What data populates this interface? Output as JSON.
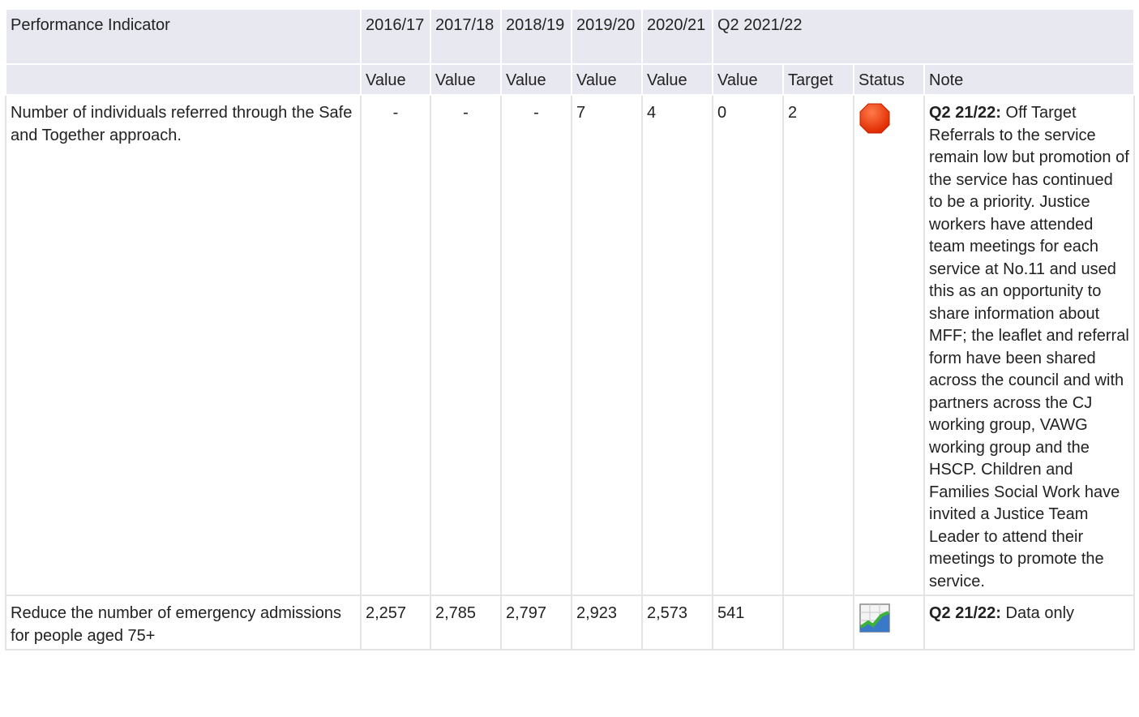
{
  "table": {
    "header": {
      "indicator": "Performance Indicator",
      "periods": [
        "2016/17",
        "2017/18",
        "2018/19",
        "2019/20",
        "2020/21",
        "Q2 2021/22"
      ],
      "subheaders": [
        "Value",
        "Value",
        "Value",
        "Value",
        "Value",
        "Value",
        "Target",
        "Status",
        "Note"
      ]
    },
    "rows": [
      {
        "indicator": "Number of individuals referred through the Safe and Together approach.",
        "values": [
          "-",
          "-",
          "-",
          "7",
          "4",
          "0"
        ],
        "target": "2",
        "note_label": "Q2 21/22:",
        "note": "Off Target Referrals to the service remain low but promotion of the service has continued to be a priority. Justice workers have attended team meetings for each service at No.11 and used this as an opportunity to share information about MFF; the leaflet and referral form have been shared across the council and with partners across the CJ working group, VAWG working group and the HSCP. Children and Families Social Work have invited a Justice Team Leader to attend their meetings to promote the service."
      },
      {
        "indicator": "Reduce the number of emergency admissions for people aged 75+",
        "values": [
          "2,257",
          "2,785",
          "2,797",
          "2,923",
          "2,573",
          "541"
        ],
        "note_label": "Q2 21/22:",
        "note": "Data only"
      }
    ]
  }
}
